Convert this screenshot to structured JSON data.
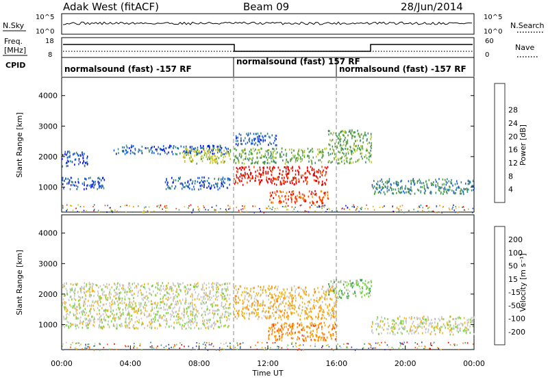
{
  "header": {
    "title": "Adak West (fitACF)",
    "beam": "Beam 09",
    "date": "28/Jun/2014"
  },
  "noise_panel": {
    "left_label": "N.Sky",
    "right_label": "N.Search",
    "left_ticks": [
      "10^5",
      "10^0"
    ],
    "right_ticks": [
      "10^5",
      "10^0"
    ]
  },
  "freq_panel": {
    "left_label_1": "Freq.",
    "left_label_2": "[MHz]",
    "right_label": "Nave",
    "left_ticks": [
      "18",
      "8"
    ],
    "right_ticks": [
      "60",
      "0"
    ]
  },
  "cpid_panel": {
    "label": "CPID",
    "segments": [
      {
        "start": 0,
        "end": 10,
        "text": "normalsound (fast) -157 RF"
      },
      {
        "start": 10,
        "end": 16,
        "text": "normalsound (fast) 157 RF"
      },
      {
        "start": 16,
        "end": 24,
        "text": "normalsound (fast) -157 RF"
      }
    ]
  },
  "chart_data": [
    {
      "type": "heatmap",
      "panel": "power",
      "ylabel": "Slant Range [km]",
      "xlim": [
        0,
        24
      ],
      "ylim": [
        180,
        4600
      ],
      "yticks": [
        1000,
        2000,
        3000,
        4000
      ],
      "colorbar": {
        "label": "Power [dB]",
        "ticks": [
          "4",
          "8",
          "12",
          "16",
          "20",
          "24",
          "28"
        ],
        "colors": [
          "#0a14e6",
          "#1e5fd2",
          "#3c8c78",
          "#54a03c",
          "#b4c832",
          "#f0c31e",
          "#ff8c00",
          "#ff4a00",
          "#e60000"
        ]
      },
      "bands": [
        {
          "x": [
            0.0,
            2.5
          ],
          "y": [
            950,
            1350
          ],
          "level": 1
        },
        {
          "x": [
            6.0,
            9.8
          ],
          "y": [
            950,
            1350
          ],
          "level": 1
        },
        {
          "x": [
            0.0,
            1.5
          ],
          "y": [
            1700,
            2200
          ],
          "level": 1
        },
        {
          "x": [
            3.0,
            9.8
          ],
          "y": [
            2100,
            2400
          ],
          "level": 1
        },
        {
          "x": [
            7.0,
            9.8
          ],
          "y": [
            1800,
            2300
          ],
          "level": 4
        },
        {
          "x": [
            10.0,
            15.5
          ],
          "y": [
            1100,
            1700
          ],
          "level": 8
        },
        {
          "x": [
            12.0,
            15.5
          ],
          "y": [
            500,
            900
          ],
          "level": 7
        },
        {
          "x": [
            10.0,
            15.5
          ],
          "y": [
            1800,
            2300
          ],
          "level": 3
        },
        {
          "x": [
            10.0,
            12.5
          ],
          "y": [
            2400,
            2800
          ],
          "level": 1
        },
        {
          "x": [
            15.5,
            18.0
          ],
          "y": [
            1800,
            2900
          ],
          "level": 3
        },
        {
          "x": [
            18.0,
            24.0
          ],
          "y": [
            800,
            1300
          ],
          "level": 2
        }
      ]
    },
    {
      "type": "heatmap",
      "panel": "velocity",
      "ylabel": "Slant Range [km]",
      "xlabel": "Time UT",
      "xlim": [
        0,
        24
      ],
      "ylim": [
        180,
        4600
      ],
      "yticks": [
        1000,
        2000,
        3000,
        4000
      ],
      "xticks": [
        "00:00",
        "04:00",
        "08:00",
        "12:00",
        "16:00",
        "20:00",
        "00:00"
      ],
      "colorbar": {
        "label": "Velocity [m s⁻¹]",
        "ticks": [
          "200",
          "100",
          "50",
          "15",
          "-15",
          "-50",
          "-100",
          "-200"
        ],
        "colors": [
          "#2a3cc8",
          "#3c78b4",
          "#3c9664",
          "#78d23c",
          "#c8c8c8",
          "#f0b41e",
          "#ff8c00",
          "#ff4a00",
          "#e60000"
        ]
      },
      "bands": [
        {
          "x": [
            0.0,
            9.8
          ],
          "y": [
            900,
            2400
          ],
          "level": 4
        },
        {
          "x": [
            10.0,
            16.0
          ],
          "y": [
            1200,
            2300
          ],
          "level": 5
        },
        {
          "x": [
            12.0,
            16.0
          ],
          "y": [
            500,
            1100
          ],
          "level": 6
        },
        {
          "x": [
            15.5,
            18.0
          ],
          "y": [
            1900,
            2500
          ],
          "level": 3
        },
        {
          "x": [
            18.0,
            24.0
          ],
          "y": [
            700,
            1300
          ],
          "level": 4
        }
      ]
    }
  ]
}
